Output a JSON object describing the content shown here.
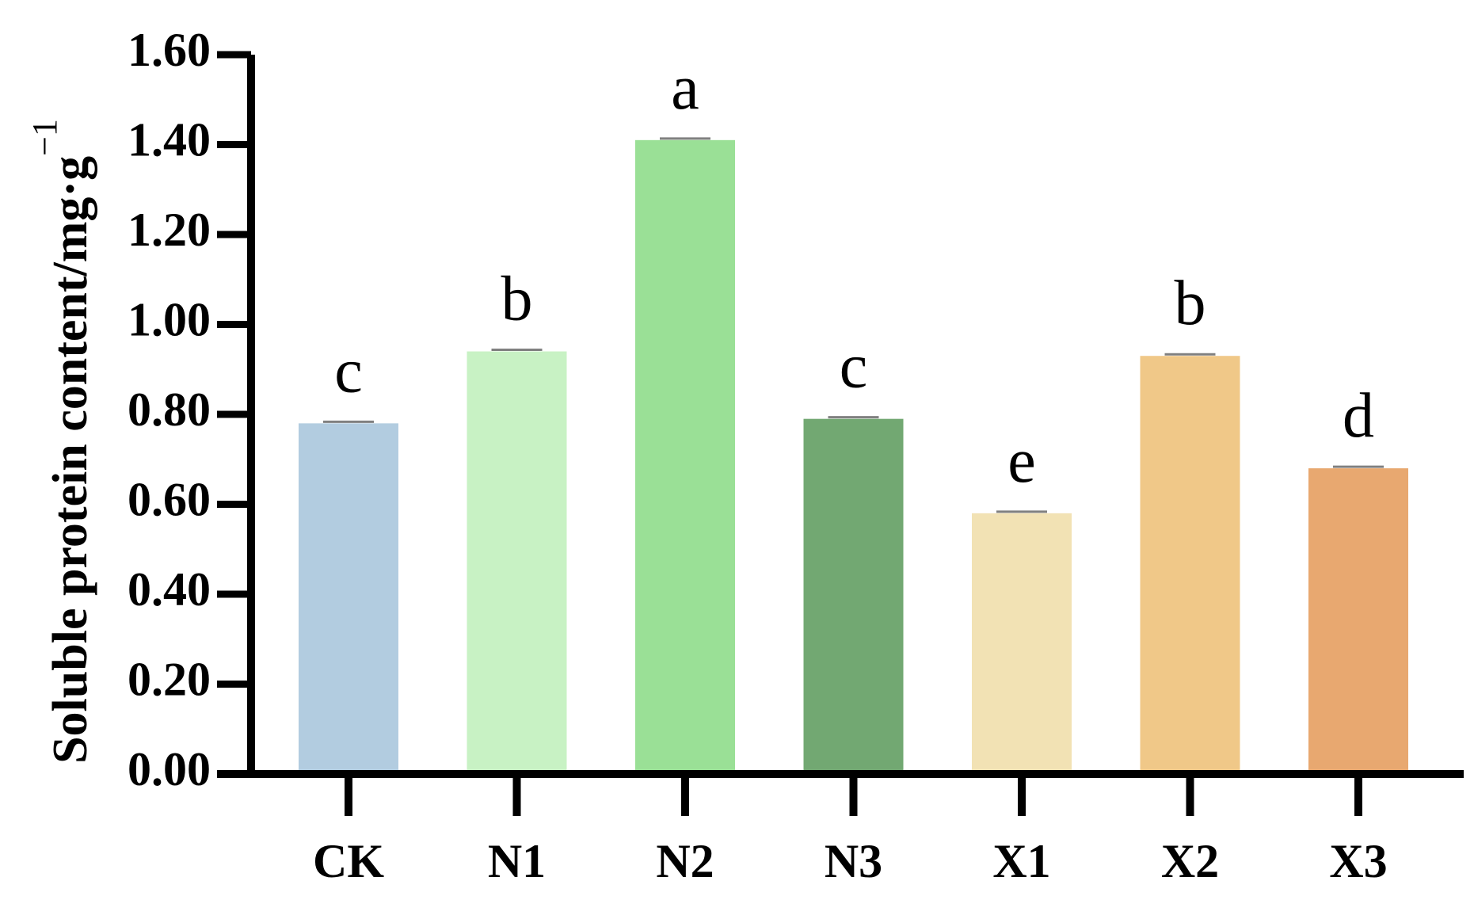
{
  "chart_data": {
    "type": "bar",
    "title": "",
    "xlabel": "",
    "ylabel": "Soluble protein content/mg·g",
    "ylabel_superscript": "−1",
    "categories": [
      "CK",
      "N1",
      "N2",
      "N3",
      "X1",
      "X2",
      "X3"
    ],
    "values": [
      0.78,
      0.94,
      1.41,
      0.79,
      0.58,
      0.93,
      0.68
    ],
    "significance_letters": [
      "c",
      "b",
      "a",
      "c",
      "e",
      "b",
      "d"
    ],
    "colors": [
      "#b2cce0",
      "#c8f2c4",
      "#9ae096",
      "#72a872",
      "#f2e2b4",
      "#f0c888",
      "#e8a870"
    ],
    "error_bar_color": "#808080",
    "ylim": [
      0,
      1.6
    ],
    "yticks": [
      "0.00",
      "0.20",
      "0.40",
      "0.60",
      "0.80",
      "1.00",
      "1.20",
      "1.40",
      "1.60"
    ],
    "grid": false,
    "legend": "none"
  }
}
